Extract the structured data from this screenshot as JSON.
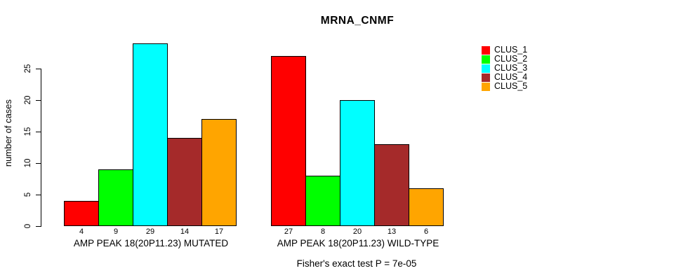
{
  "chart_data": {
    "type": "bar",
    "title": "MRNA_CNMF",
    "ylabel": "number of cases",
    "xlabel": "",
    "ylim": [
      0,
      29
    ],
    "yticks": [
      0,
      5,
      10,
      15,
      20,
      25
    ],
    "grid": false,
    "legend_position": "top-right",
    "categories": [
      "AMP PEAK 18(20P11.23) MUTATED",
      "AMP PEAK 18(20P11.23) WILD-TYPE"
    ],
    "series": [
      {
        "name": "CLUS_1",
        "color": "#ff0000",
        "values": [
          4,
          27
        ]
      },
      {
        "name": "CLUS_2",
        "color": "#00ff00",
        "values": [
          9,
          8
        ]
      },
      {
        "name": "CLUS_3",
        "color": "#00ffff",
        "values": [
          29,
          20
        ]
      },
      {
        "name": "CLUS_4",
        "color": "#a52a2a",
        "values": [
          14,
          13
        ]
      },
      {
        "name": "CLUS_5",
        "color": "#ffa500",
        "values": [
          17,
          6
        ]
      }
    ],
    "bar_value_labels": [
      [
        4,
        9,
        29,
        14,
        17
      ],
      [
        27,
        8,
        20,
        13,
        6
      ]
    ],
    "annotation": "Fisher's exact test P = 7e-05"
  }
}
